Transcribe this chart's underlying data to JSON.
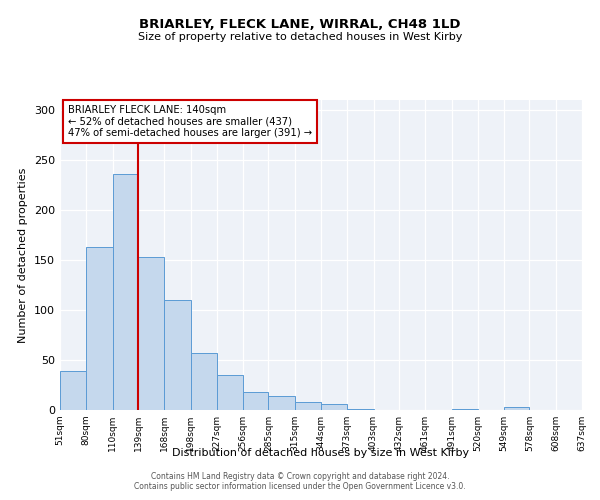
{
  "title": "BRIARLEY, FLECK LANE, WIRRAL, CH48 1LD",
  "subtitle": "Size of property relative to detached houses in West Kirby",
  "xlabel": "Distribution of detached houses by size in West Kirby",
  "ylabel": "Number of detached properties",
  "bar_values": [
    39,
    163,
    236,
    153,
    110,
    57,
    35,
    18,
    14,
    8,
    6,
    1,
    0,
    0,
    0,
    1,
    0,
    3
  ],
  "bin_edges": [
    51,
    80,
    110,
    139,
    168,
    198,
    227,
    256,
    285,
    315,
    344,
    373,
    403,
    432,
    461,
    491,
    520,
    549,
    578
  ],
  "tick_positions": [
    51,
    80,
    110,
    139,
    168,
    198,
    227,
    256,
    285,
    315,
    344,
    373,
    403,
    432,
    461,
    491,
    520,
    549,
    578,
    608,
    637
  ],
  "tick_labels": [
    "51sqm",
    "80sqm",
    "110sqm",
    "139sqm",
    "168sqm",
    "198sqm",
    "227sqm",
    "256sqm",
    "285sqm",
    "315sqm",
    "344sqm",
    "373sqm",
    "403sqm",
    "432sqm",
    "461sqm",
    "491sqm",
    "520sqm",
    "549sqm",
    "578sqm",
    "608sqm",
    "637sqm"
  ],
  "bar_color": "#c5d8ed",
  "bar_edge_color": "#5b9bd5",
  "reference_line_x": 139,
  "reference_line_color": "#cc0000",
  "annotation_title": "BRIARLEY FLECK LANE: 140sqm",
  "annotation_line1": "← 52% of detached houses are smaller (437)",
  "annotation_line2": "47% of semi-detached houses are larger (391) →",
  "annotation_box_edge": "#cc0000",
  "ylim": [
    0,
    310
  ],
  "yticks": [
    0,
    50,
    100,
    150,
    200,
    250,
    300
  ],
  "xlim_left": 51,
  "xlim_right": 637,
  "bg_color": "#eef2f8",
  "footer1": "Contains HM Land Registry data © Crown copyright and database right 2024.",
  "footer2": "Contains public sector information licensed under the Open Government Licence v3.0."
}
